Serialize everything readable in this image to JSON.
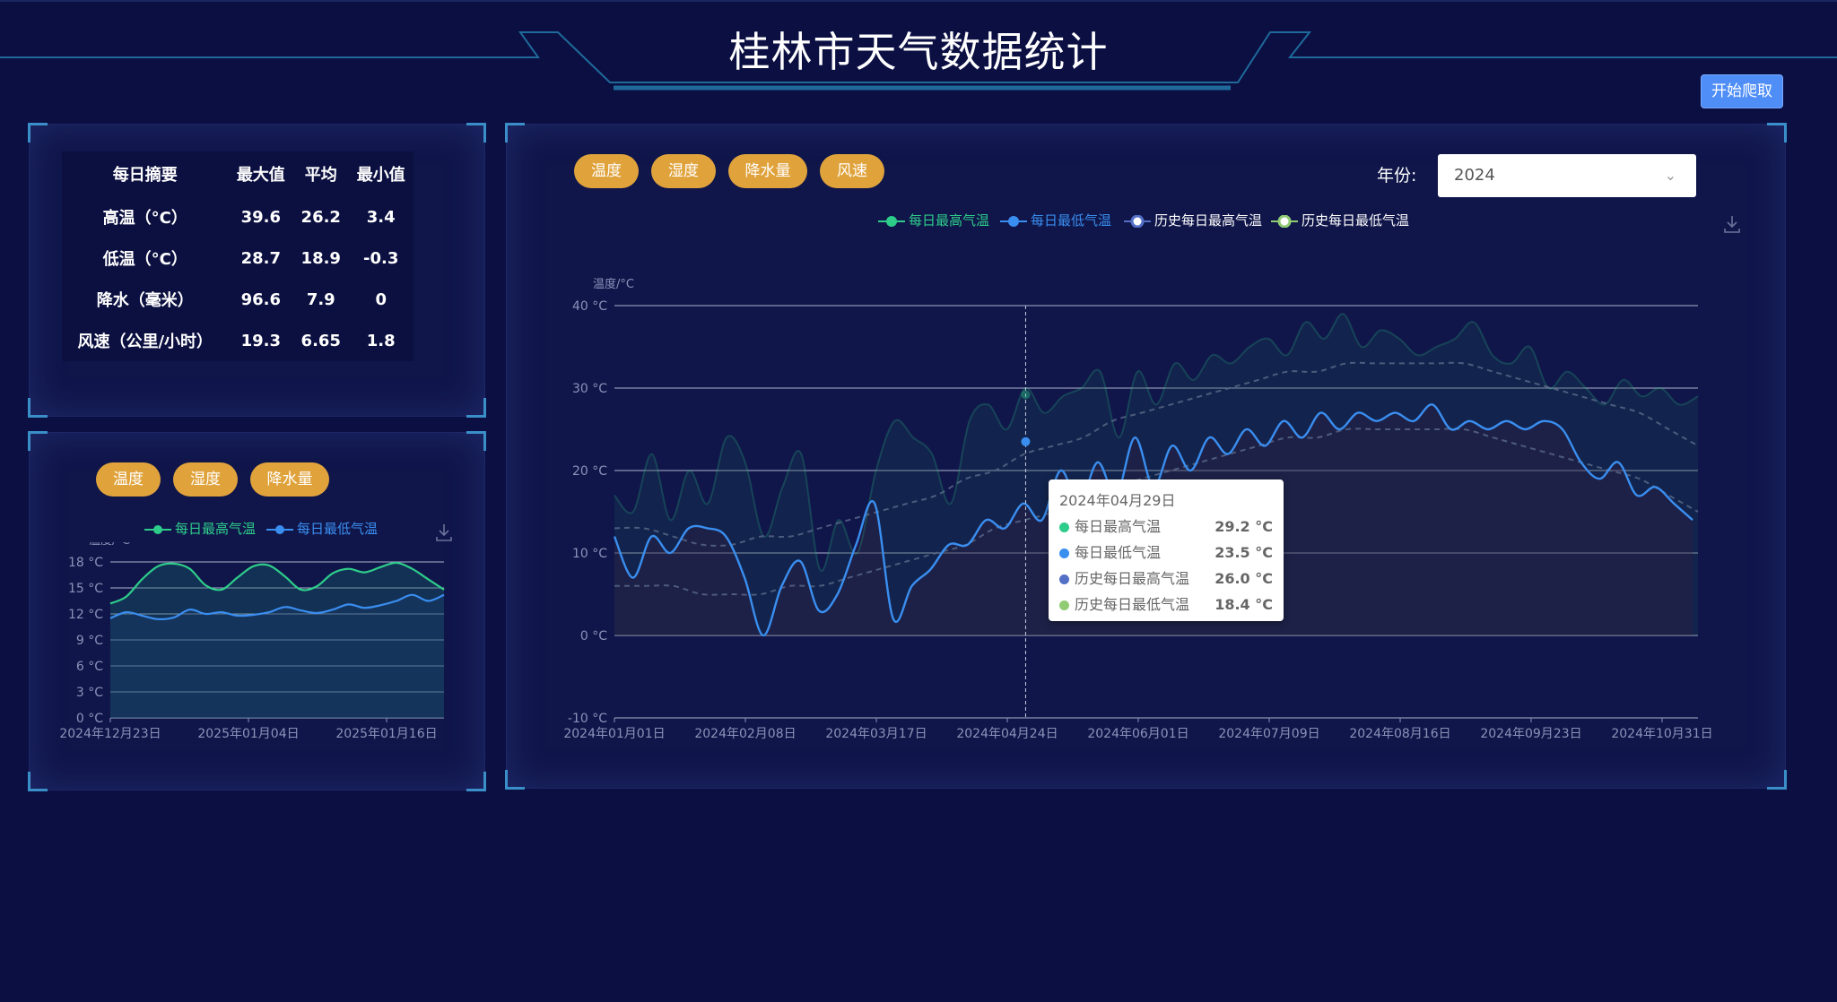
{
  "header": {
    "title": "桂林市天气数据统计",
    "crawl_button": "开始爬取"
  },
  "summary": {
    "headers": [
      "每日摘要",
      "最大值",
      "平均",
      "最小值"
    ],
    "rows": [
      {
        "label": "高温（°C）",
        "max": "39.6",
        "avg": "26.2",
        "min": "3.4"
      },
      {
        "label": "低温（°C）",
        "max": "28.7",
        "avg": "18.9",
        "min": "-0.3"
      },
      {
        "label": "降水（毫米）",
        "max": "96.6",
        "avg": "7.9",
        "min": "0"
      },
      {
        "label": "风速（公里/小时）",
        "max": "19.3",
        "avg": "6.65",
        "min": "1.8"
      }
    ]
  },
  "mini_panel": {
    "tabs": [
      "温度",
      "湿度",
      "降水量"
    ],
    "legend": [
      "每日最高气温",
      "每日最低气温"
    ]
  },
  "main_panel": {
    "tabs": [
      "温度",
      "湿度",
      "降水量",
      "风速"
    ],
    "year_label": "年份:",
    "year_value": "2024",
    "legend": [
      "每日最高气温",
      "每日最低气温",
      "历史每日最高气温",
      "历史每日最低气温"
    ],
    "tooltip": {
      "date": "2024年04月29日",
      "rows": [
        {
          "label": "每日最高气温",
          "value": "29.2 °C"
        },
        {
          "label": "每日最低气温",
          "value": "23.5 °C"
        },
        {
          "label": "历史每日最高气温",
          "value": "26.0 °C"
        },
        {
          "label": "历史每日最低气温",
          "value": "18.4 °C"
        }
      ]
    }
  },
  "colors": {
    "background": "#0b0f42",
    "accent": "#3a8fc9",
    "pill": "#e0a33c",
    "high_temp": "#2ecc8a",
    "low_temp": "#3a8ef0",
    "hist_high": "#5470c6",
    "hist_low": "#91cc75",
    "crawl_button": "#4f8ef7"
  },
  "icons": {
    "download": "download-icon",
    "select_chevron": "chevron-down-icon"
  },
  "chart_data": [
    {
      "type": "line",
      "ylabel": "温度/°C",
      "ylim": [
        -10,
        40
      ],
      "y_ticks": [
        "40 °C",
        "30 °C",
        "20 °C",
        "10 °C",
        "0 °C",
        "-10 °C"
      ],
      "x_ticks": [
        "2024年01月01日",
        "2024年02月08日",
        "2024年03月17日",
        "2024年04月24日",
        "2024年06月01日",
        "2024年07月09日",
        "2024年08月16日",
        "2024年09月23日",
        "2024年10月31日"
      ],
      "series": [
        {
          "name": "每日最高气温",
          "values": [
            17,
            15,
            22,
            14,
            20,
            16,
            24,
            21,
            12,
            18,
            22,
            8,
            14,
            10,
            20,
            26,
            24,
            22,
            16,
            26,
            28,
            25,
            30,
            27,
            29,
            30,
            32,
            24,
            32,
            28,
            33,
            31,
            34,
            33,
            35,
            36,
            34,
            38,
            36,
            39,
            35,
            37,
            36,
            34,
            35,
            36,
            38,
            34,
            33,
            35,
            30,
            32,
            30,
            28,
            31,
            29,
            30,
            28,
            29
          ]
        },
        {
          "name": "每日最低气温",
          "values": [
            12,
            7,
            12,
            10,
            13,
            13,
            12,
            7,
            0,
            6,
            9,
            3,
            5,
            11,
            16,
            2,
            6,
            8,
            11,
            11,
            14,
            13,
            16,
            14,
            20,
            16,
            21,
            17,
            24,
            18,
            23,
            20,
            24,
            22,
            25,
            23,
            26,
            24,
            27,
            25,
            27,
            26,
            27,
            26,
            28,
            25,
            26,
            25,
            26,
            25,
            26,
            25,
            21,
            19,
            21,
            17,
            18,
            16,
            14
          ]
        },
        {
          "name": "历史每日最高气温",
          "values": [
            13,
            13,
            12,
            11,
            11,
            12,
            12,
            13,
            14,
            15,
            16,
            17,
            19,
            20,
            22,
            23,
            24,
            26,
            27,
            28,
            29,
            30,
            31,
            32,
            32,
            33,
            33,
            33,
            33,
            33,
            32,
            31,
            30,
            29,
            28,
            27,
            25,
            23
          ]
        },
        {
          "name": "历史每日最低气温",
          "values": [
            6,
            6,
            6,
            5,
            5,
            5,
            6,
            6,
            7,
            8,
            9,
            10,
            11,
            13,
            14,
            15,
            17,
            18,
            19,
            20,
            21,
            22,
            23,
            24,
            24,
            25,
            25,
            25,
            25,
            25,
            24,
            23,
            22,
            21,
            20,
            19,
            17,
            15
          ]
        }
      ]
    },
    {
      "type": "area",
      "ylabel": "温度/°C",
      "ylim": [
        0,
        18
      ],
      "y_ticks": [
        "18 °C",
        "15 °C",
        "12 °C",
        "9 °C",
        "6 °C",
        "3 °C",
        "0 °C"
      ],
      "x_ticks": [
        "2024年12月23日",
        "2025年01月04日",
        "2025年01月16日"
      ],
      "series": [
        {
          "name": "每日最高气温",
          "values": [
            13.2,
            14,
            16,
            17.5,
            17.8,
            17.2,
            15.3,
            14.8,
            16.2,
            17.5,
            17.6,
            16.3,
            14.8,
            15.2,
            16.7,
            17.2,
            16.8,
            17.4,
            17.9,
            17.2,
            16,
            14.8
          ]
        },
        {
          "name": "每日最低气温",
          "values": [
            11.5,
            12.2,
            11.8,
            11.4,
            11.6,
            12.5,
            12,
            12.2,
            11.8,
            11.9,
            12.2,
            12.8,
            12.4,
            12.1,
            12.5,
            13.1,
            12.7,
            13,
            13.5,
            14.2,
            13.5,
            14.2
          ]
        }
      ]
    }
  ]
}
